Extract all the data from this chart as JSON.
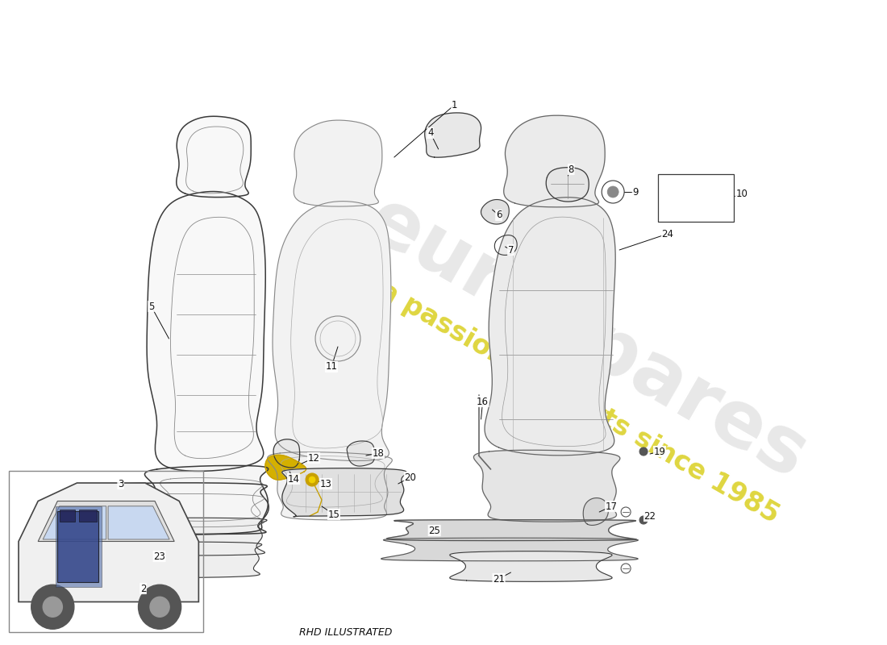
{
  "background_color": "#ffffff",
  "line_color": "#3a3a3a",
  "line_color_light": "#888888",
  "watermark_gray": "#cccccc",
  "watermark_yellow": "#d4c800",
  "subtitle": "RHD ILLUSTRATED",
  "part_label_color": "#111111",
  "label_fontsize": 8.5,
  "leader_lw": 0.7,
  "seat_lw": 1.1,
  "seat_lw_light": 0.7,
  "watermark_fontsize_brand": 70,
  "watermark_fontsize_text": 24,
  "watermark_rotation": -30,
  "watermark_alpha_brand": 0.45,
  "watermark_alpha_text": 0.75,
  "figsize": [
    11.0,
    8.0
  ],
  "dpi": 100
}
